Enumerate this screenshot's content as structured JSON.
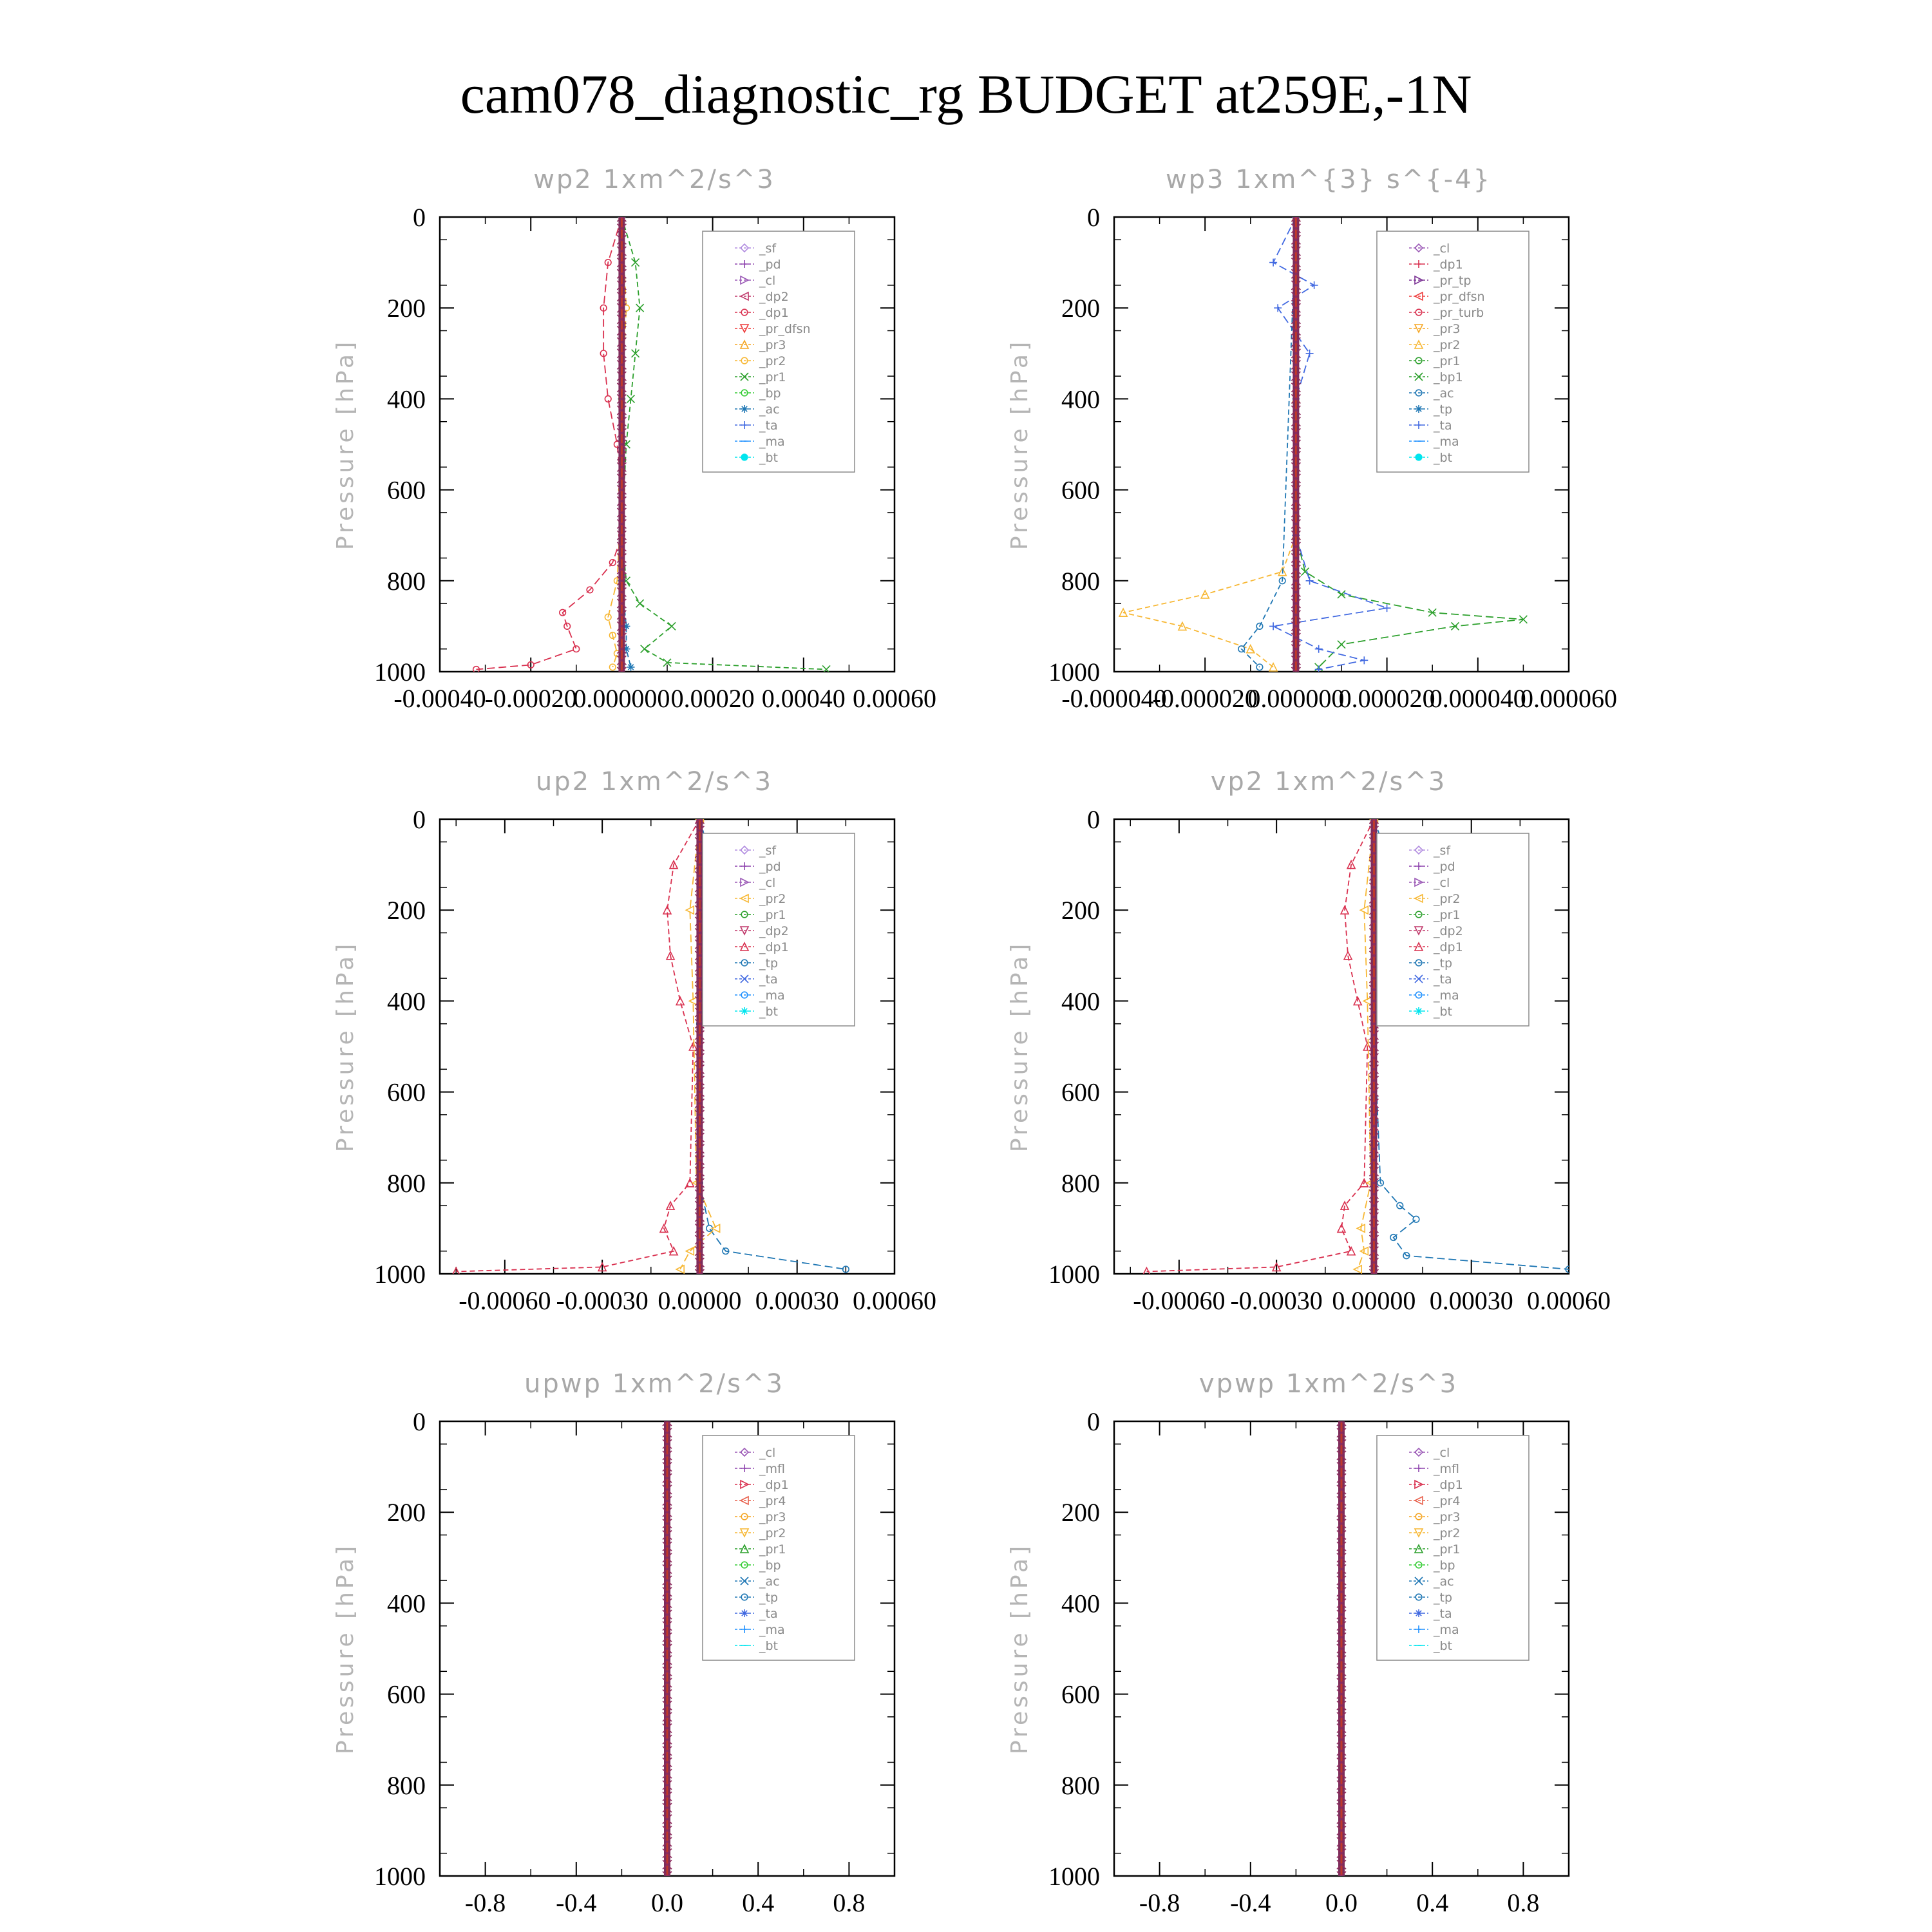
{
  "title": "cam078_diagnostic_rg  BUDGET at259E,-1N",
  "colors": {
    "_sf": "#b28de0",
    "_pd": "#8e44ad",
    "_cl": "#9b59b6",
    "_dp2": "#c0396b",
    "_dp1": "#d9304f",
    "_pr_dfsn": "#ee3b3b",
    "_pr3": "#f5a623",
    "_pr2": "#f7b733",
    "_pr1": "#2ca02c",
    "_bp": "#33cc33",
    "_ac": "#1f77b4",
    "_ta": "#4169e1",
    "_ma": "#1e90ff",
    "_bt": "#00e5ee",
    "_tp": "#1f77b4",
    "_bp1": "#2ca02c",
    "_mfl": "#8e44ad",
    "_pr4": "#e8604c",
    "_pr_tp": "#7b3294",
    "_pr_turb": "#d9304f"
  },
  "chart_data": [
    {
      "type": "line",
      "title": "wp2   1xm^2/s^3",
      "ylabel": "Pressure [hPa]",
      "ylim": [
        1000,
        0
      ],
      "xlim": [
        -0.0004,
        0.0006
      ],
      "xticks": [
        "-0.00040",
        "-0.00020",
        "0.000000",
        "0.00020",
        "0.00040",
        "0.00060"
      ],
      "yticks": [
        "0",
        "200",
        "400",
        "600",
        "800",
        "1000"
      ],
      "legend": [
        "_sf",
        "_pd",
        "_cl",
        "_dp2",
        "_dp1",
        "_pr_dfsn",
        "_pr3",
        "_pr2",
        "_pr1",
        "_bp",
        "_ac",
        "_ta",
        "_ma",
        "_bt"
      ],
      "legend_position": "top-right",
      "series": [
        {
          "name": "_dp1",
          "pressure": [
            0,
            100,
            200,
            300,
            400,
            500,
            600,
            700,
            760,
            820,
            870,
            900,
            950,
            985,
            995
          ],
          "values": [
            0,
            -3e-05,
            -4e-05,
            -4e-05,
            -3e-05,
            -1e-05,
            0,
            0,
            -2e-05,
            -7e-05,
            -0.00013,
            -0.00012,
            -0.0001,
            -0.0002,
            -0.00032
          ]
        },
        {
          "name": "_pr1",
          "pressure": [
            0,
            100,
            200,
            300,
            400,
            500,
            700,
            800,
            850,
            900,
            950,
            980,
            995
          ],
          "values": [
            0,
            3e-05,
            4e-05,
            3e-05,
            2e-05,
            1e-05,
            0,
            1e-05,
            4e-05,
            0.00011,
            5e-05,
            0.0001,
            0.00045
          ]
        },
        {
          "name": "_pr2",
          "pressure": [
            0,
            200,
            400,
            600,
            800,
            880,
            920,
            960,
            990
          ],
          "values": [
            0,
            1e-05,
            0,
            0,
            -1e-05,
            -3e-05,
            -2e-05,
            -1e-05,
            -2e-05
          ]
        },
        {
          "name": "_ac",
          "pressure": [
            0,
            400,
            800,
            900,
            950,
            990
          ],
          "values": [
            0,
            0,
            0,
            1e-05,
            1e-05,
            2e-05
          ]
        }
      ]
    },
    {
      "type": "line",
      "title": "wp3   1xm^{3} s^{-4}",
      "ylabel": "Pressure [hPa]",
      "ylim": [
        1000,
        0
      ],
      "xlim": [
        -4e-05,
        6e-05
      ],
      "xticks": [
        "-0.000040",
        "-0.000020",
        "0.000000",
        "0.000020",
        "0.000040",
        "0.000060"
      ],
      "yticks": [
        "0",
        "200",
        "400",
        "600",
        "800",
        "1000"
      ],
      "legend": [
        "_cl",
        "_dp1",
        "_pr_tp",
        "_pr_dfsn",
        "_pr_turb",
        "_pr3",
        "_pr2",
        "_pr1",
        "_bp1",
        "_ac",
        "_tp",
        "_ta",
        "_ma",
        "_bt"
      ],
      "legend_position": "top-right",
      "series": [
        {
          "name": "_bp1",
          "pressure": [
            0,
            400,
            700,
            780,
            830,
            870,
            885,
            900,
            940,
            990
          ],
          "values": [
            0,
            0,
            0,
            2e-06,
            1e-05,
            3e-05,
            5e-05,
            3.5e-05,
            1e-05,
            5e-06
          ]
        },
        {
          "name": "_pr2",
          "pressure": [
            0,
            400,
            700,
            780,
            830,
            870,
            900,
            950,
            990
          ],
          "values": [
            0,
            0,
            0,
            -3e-06,
            -2e-05,
            -3.8e-05,
            -2.5e-05,
            -1e-05,
            -5e-06
          ]
        },
        {
          "name": "_ta",
          "pressure": [
            0,
            100,
            150,
            200,
            300,
            400,
            700,
            800,
            860,
            900,
            950,
            975,
            995
          ],
          "values": [
            0,
            -5e-06,
            4e-06,
            -4e-06,
            3e-06,
            0,
            0,
            3e-06,
            2e-05,
            -5e-06,
            5e-06,
            1.5e-05,
            5e-06
          ]
        },
        {
          "name": "_ac",
          "pressure": [
            0,
            800,
            900,
            950,
            990
          ],
          "values": [
            0,
            -3e-06,
            -8e-06,
            -1.2e-05,
            -8e-06
          ]
        }
      ]
    },
    {
      "type": "line",
      "title": "up2   1xm^2/s^3",
      "ylabel": "Pressure [hPa]",
      "ylim": [
        1000,
        0
      ],
      "xlim": [
        -0.0008,
        0.0006
      ],
      "xticks": [
        "-0.00060",
        "-0.00030",
        "0.00000",
        "0.00030",
        "0.00060"
      ],
      "yticks": [
        "0",
        "200",
        "400",
        "600",
        "800",
        "1000"
      ],
      "legend": [
        "_sf",
        "_pd",
        "_cl",
        "_pr2",
        "_pr1",
        "_dp2",
        "_dp1",
        "_tp",
        "_ta",
        "_ma",
        "_bt"
      ],
      "legend_position": "top-right",
      "series": [
        {
          "name": "_tp",
          "pressure": [
            0,
            100,
            150,
            200,
            250,
            300,
            350,
            400,
            450,
            800,
            900,
            950,
            990
          ],
          "values": [
            0,
            4e-05,
            8e-05,
            0.00011,
            0.00013,
            9e-05,
            5e-05,
            2e-05,
            0,
            0,
            3e-05,
            8e-05,
            0.00045
          ]
        },
        {
          "name": "_dp1",
          "pressure": [
            0,
            100,
            200,
            300,
            400,
            500,
            800,
            850,
            900,
            950,
            985,
            995
          ],
          "values": [
            0,
            -8e-05,
            -0.0001,
            -9e-05,
            -6e-05,
            -2e-05,
            -3e-05,
            -9e-05,
            -0.00011,
            -8e-05,
            -0.0003,
            -0.00075
          ]
        },
        {
          "name": "_pr2",
          "pressure": [
            0,
            200,
            400,
            800,
            900,
            950,
            990
          ],
          "values": [
            0,
            -3e-05,
            -2e-05,
            -1e-05,
            5e-05,
            -3e-05,
            -6e-05
          ]
        }
      ]
    },
    {
      "type": "line",
      "title": "vp2   1xm^2/s^3",
      "ylabel": "Pressure [hPa]",
      "ylim": [
        1000,
        0
      ],
      "xlim": [
        -0.0008,
        0.0006
      ],
      "xticks": [
        "-0.00060",
        "-0.00030",
        "0.00000",
        "0.00030",
        "0.00060"
      ],
      "yticks": [
        "0",
        "200",
        "400",
        "600",
        "800",
        "1000"
      ],
      "legend": [
        "_sf",
        "_pd",
        "_cl",
        "_pr2",
        "_pr1",
        "_dp2",
        "_dp1",
        "_tp",
        "_ta",
        "_ma",
        "_bt"
      ],
      "legend_position": "top-right",
      "series": [
        {
          "name": "_tp",
          "pressure": [
            0,
            100,
            150,
            200,
            250,
            300,
            350,
            400,
            450,
            800,
            850,
            880,
            920,
            960,
            990
          ],
          "values": [
            0,
            5e-05,
            8e-05,
            6e-05,
            9e-05,
            6e-05,
            3e-05,
            1e-05,
            0,
            2e-05,
            8e-05,
            0.00013,
            6e-05,
            0.0001,
            0.0006
          ]
        },
        {
          "name": "_dp1",
          "pressure": [
            0,
            100,
            200,
            300,
            400,
            500,
            800,
            850,
            900,
            950,
            985,
            995
          ],
          "values": [
            0,
            -7e-05,
            -9e-05,
            -8e-05,
            -5e-05,
            -2e-05,
            -3e-05,
            -9e-05,
            -0.0001,
            -7e-05,
            -0.0003,
            -0.0007
          ]
        },
        {
          "name": "_pr2",
          "pressure": [
            0,
            200,
            400,
            800,
            900,
            950,
            990
          ],
          "values": [
            0,
            -3e-05,
            -2e-05,
            -1e-05,
            -4e-05,
            -3e-05,
            -5e-05
          ]
        }
      ]
    },
    {
      "type": "line",
      "title": "upwp   1xm^2/s^3",
      "ylabel": "Pressure [hPa]",
      "ylim": [
        1000,
        0
      ],
      "xlim": [
        -1,
        1
      ],
      "xticks": [
        "-0.8",
        "-0.4",
        "0.0",
        "0.4",
        "0.8"
      ],
      "yticks": [
        "0",
        "200",
        "400",
        "600",
        "800",
        "1000"
      ],
      "legend": [
        "_cl",
        "_mfl",
        "_dp1",
        "_pr4",
        "_pr3",
        "_pr2",
        "_pr1",
        "_bp",
        "_ac",
        "_tp",
        "_ta",
        "_ma",
        "_bt"
      ],
      "legend_position": "top-right",
      "series": []
    },
    {
      "type": "line",
      "title": "vpwp   1xm^2/s^3",
      "ylabel": "Pressure [hPa]",
      "ylim": [
        1000,
        0
      ],
      "xlim": [
        -1,
        1
      ],
      "xticks": [
        "-0.8",
        "-0.4",
        "0.0",
        "0.4",
        "0.8"
      ],
      "yticks": [
        "0",
        "200",
        "400",
        "600",
        "800",
        "1000"
      ],
      "legend": [
        "_cl",
        "_mfl",
        "_dp1",
        "_pr4",
        "_pr3",
        "_pr2",
        "_pr1",
        "_bp",
        "_ac",
        "_tp",
        "_ta",
        "_ma",
        "_bt"
      ],
      "legend_position": "top-right",
      "series": []
    }
  ]
}
